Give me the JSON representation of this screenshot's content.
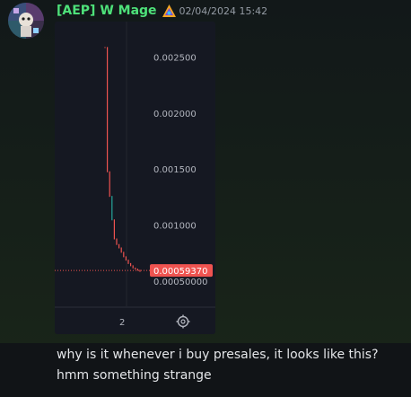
{
  "author": {
    "name": "[AEP] W Mage",
    "name_color": "#4ee27a",
    "avatar_icon": "avatar-image",
    "role_icon": "role-badge-icon"
  },
  "message": {
    "timestamp": "02/04/2024 15:42",
    "text": "why is it whenever i buy presales, it looks like this? hmm something strange"
  },
  "chart_data": {
    "type": "line",
    "title": "",
    "xlabel": "",
    "ylabel": "",
    "y_ticks": [
      "0.002500",
      "0.002000",
      "0.001500",
      "0.001000",
      "0.00050000"
    ],
    "x_ticks": [
      "2"
    ],
    "current_price_label": "0.00059370",
    "current_price": 0.0005937,
    "ylim": [
      0.00033,
      0.00277
    ],
    "series": [
      {
        "color": "#ef5350",
        "values": [
          0.00259,
          0.00148,
          0.00126,
          0.00105,
          0.00088,
          0.00083,
          0.0008,
          0.00076,
          0.00072,
          0.00069,
          0.00066,
          0.00064,
          0.00062,
          0.00061,
          0.0006,
          0.00059
        ]
      }
    ],
    "colors": {
      "down": "#ef5350",
      "up": "#26a69a",
      "price_tag_bg": "#ef5350",
      "axis_text": "#b2b5be"
    },
    "settings_icon": "gear-icon"
  }
}
